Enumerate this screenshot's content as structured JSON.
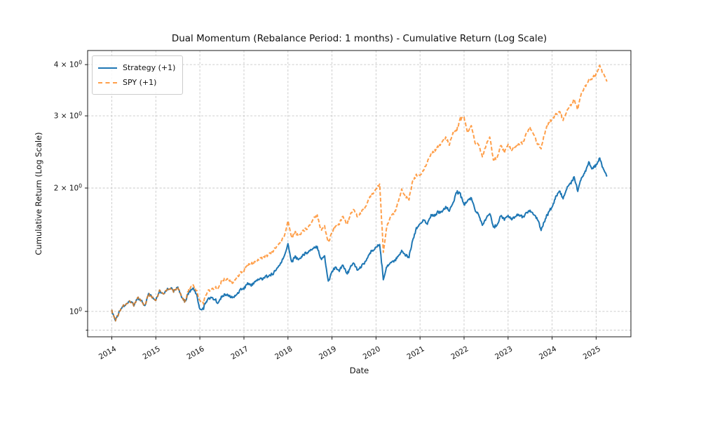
{
  "figure": {
    "background": "#ffffff",
    "spine_color": "#1a1a1a",
    "grid_color": "#c7c7c7"
  },
  "chart_data": {
    "type": "line",
    "title": "Dual Momentum (Rebalance Period: 1 months) - Cumulative Return (Log Scale)",
    "xlabel": "Date",
    "ylabel": "Cumulative Return (Log Scale)",
    "yscale": "log",
    "grid": true,
    "legend_position": "upper-left",
    "xlim": [
      2013.45,
      2025.79
    ],
    "ylim": [
      0.867,
      4.33
    ],
    "x_ticks": [
      2014,
      2015,
      2016,
      2017,
      2018,
      2019,
      2020,
      2021,
      2022,
      2023,
      2024,
      2025
    ],
    "x_tick_labels": [
      "2014",
      "2015",
      "2016",
      "2017",
      "2018",
      "2019",
      "2020",
      "2021",
      "2022",
      "2023",
      "2024",
      "2025"
    ],
    "x_tick_rotation": 30,
    "y_ticks": [
      {
        "value": 0.9,
        "minor": true,
        "label": null
      },
      {
        "value": 1,
        "minor": false,
        "label": {
          "base": "10",
          "sup": "0"
        }
      },
      {
        "value": 2,
        "minor": true,
        "label": {
          "base": "2 × 10",
          "sup": "0"
        }
      },
      {
        "value": 3,
        "minor": true,
        "label": {
          "base": "3 × 10",
          "sup": "0"
        }
      },
      {
        "value": 4,
        "minor": true,
        "label": {
          "base": "4 × 10",
          "sup": "0"
        }
      }
    ],
    "x_start": 2014.0,
    "x_step": 0.0833333,
    "series": [
      {
        "name": "Strategy (+1)",
        "color": "#1f77b4",
        "style": "solid",
        "opacity": 1.0,
        "values": [
          1.0,
          0.95,
          1.0,
          1.03,
          1.04,
          1.06,
          1.04,
          1.08,
          1.06,
          1.03,
          1.1,
          1.08,
          1.06,
          1.12,
          1.1,
          1.13,
          1.14,
          1.12,
          1.15,
          1.08,
          1.06,
          1.11,
          1.14,
          1.11,
          1.01,
          1.02,
          1.07,
          1.08,
          1.07,
          1.05,
          1.09,
          1.1,
          1.09,
          1.08,
          1.1,
          1.13,
          1.14,
          1.17,
          1.16,
          1.18,
          1.2,
          1.2,
          1.22,
          1.22,
          1.24,
          1.27,
          1.31,
          1.36,
          1.46,
          1.32,
          1.36,
          1.34,
          1.37,
          1.39,
          1.41,
          1.43,
          1.44,
          1.34,
          1.36,
          1.18,
          1.25,
          1.28,
          1.26,
          1.3,
          1.23,
          1.28,
          1.31,
          1.26,
          1.29,
          1.32,
          1.37,
          1.41,
          1.43,
          1.46,
          1.2,
          1.29,
          1.31,
          1.33,
          1.36,
          1.41,
          1.37,
          1.36,
          1.49,
          1.6,
          1.63,
          1.68,
          1.63,
          1.72,
          1.71,
          1.75,
          1.74,
          1.8,
          1.76,
          1.84,
          1.96,
          1.93,
          1.82,
          1.86,
          1.9,
          1.77,
          1.72,
          1.62,
          1.69,
          1.73,
          1.6,
          1.63,
          1.71,
          1.68,
          1.71,
          1.68,
          1.71,
          1.72,
          1.7,
          1.74,
          1.76,
          1.72,
          1.69,
          1.58,
          1.67,
          1.74,
          1.8,
          1.9,
          1.97,
          1.88,
          2.0,
          2.05,
          2.12,
          1.97,
          2.12,
          2.18,
          2.3,
          2.22,
          2.28,
          2.36,
          2.22,
          2.14
        ]
      },
      {
        "name": "SPY (+1)",
        "color": "#ff7f0e",
        "style": "dashed",
        "opacity": 0.75,
        "values": [
          1.0,
          0.95,
          1.0,
          1.03,
          1.04,
          1.06,
          1.04,
          1.08,
          1.06,
          1.03,
          1.1,
          1.08,
          1.06,
          1.12,
          1.1,
          1.13,
          1.14,
          1.12,
          1.15,
          1.08,
          1.06,
          1.13,
          1.16,
          1.13,
          1.06,
          1.05,
          1.12,
          1.13,
          1.14,
          1.14,
          1.19,
          1.2,
          1.19,
          1.17,
          1.21,
          1.24,
          1.26,
          1.3,
          1.31,
          1.32,
          1.34,
          1.35,
          1.37,
          1.38,
          1.41,
          1.44,
          1.48,
          1.52,
          1.66,
          1.52,
          1.56,
          1.53,
          1.57,
          1.59,
          1.63,
          1.69,
          1.72,
          1.58,
          1.61,
          1.47,
          1.56,
          1.61,
          1.64,
          1.71,
          1.62,
          1.72,
          1.77,
          1.7,
          1.75,
          1.79,
          1.88,
          1.94,
          1.98,
          2.05,
          1.4,
          1.62,
          1.7,
          1.74,
          1.84,
          1.99,
          1.9,
          1.88,
          2.08,
          2.16,
          2.14,
          2.22,
          2.31,
          2.43,
          2.46,
          2.52,
          2.58,
          2.66,
          2.55,
          2.73,
          2.76,
          2.95,
          2.98,
          2.72,
          2.85,
          2.58,
          2.55,
          2.38,
          2.55,
          2.66,
          2.33,
          2.38,
          2.54,
          2.45,
          2.55,
          2.48,
          2.53,
          2.56,
          2.58,
          2.72,
          2.8,
          2.7,
          2.58,
          2.5,
          2.73,
          2.87,
          2.95,
          3.02,
          3.08,
          2.92,
          3.08,
          3.18,
          3.28,
          3.12,
          3.42,
          3.52,
          3.65,
          3.7,
          3.8,
          3.97,
          3.8,
          3.65
        ]
      }
    ]
  }
}
